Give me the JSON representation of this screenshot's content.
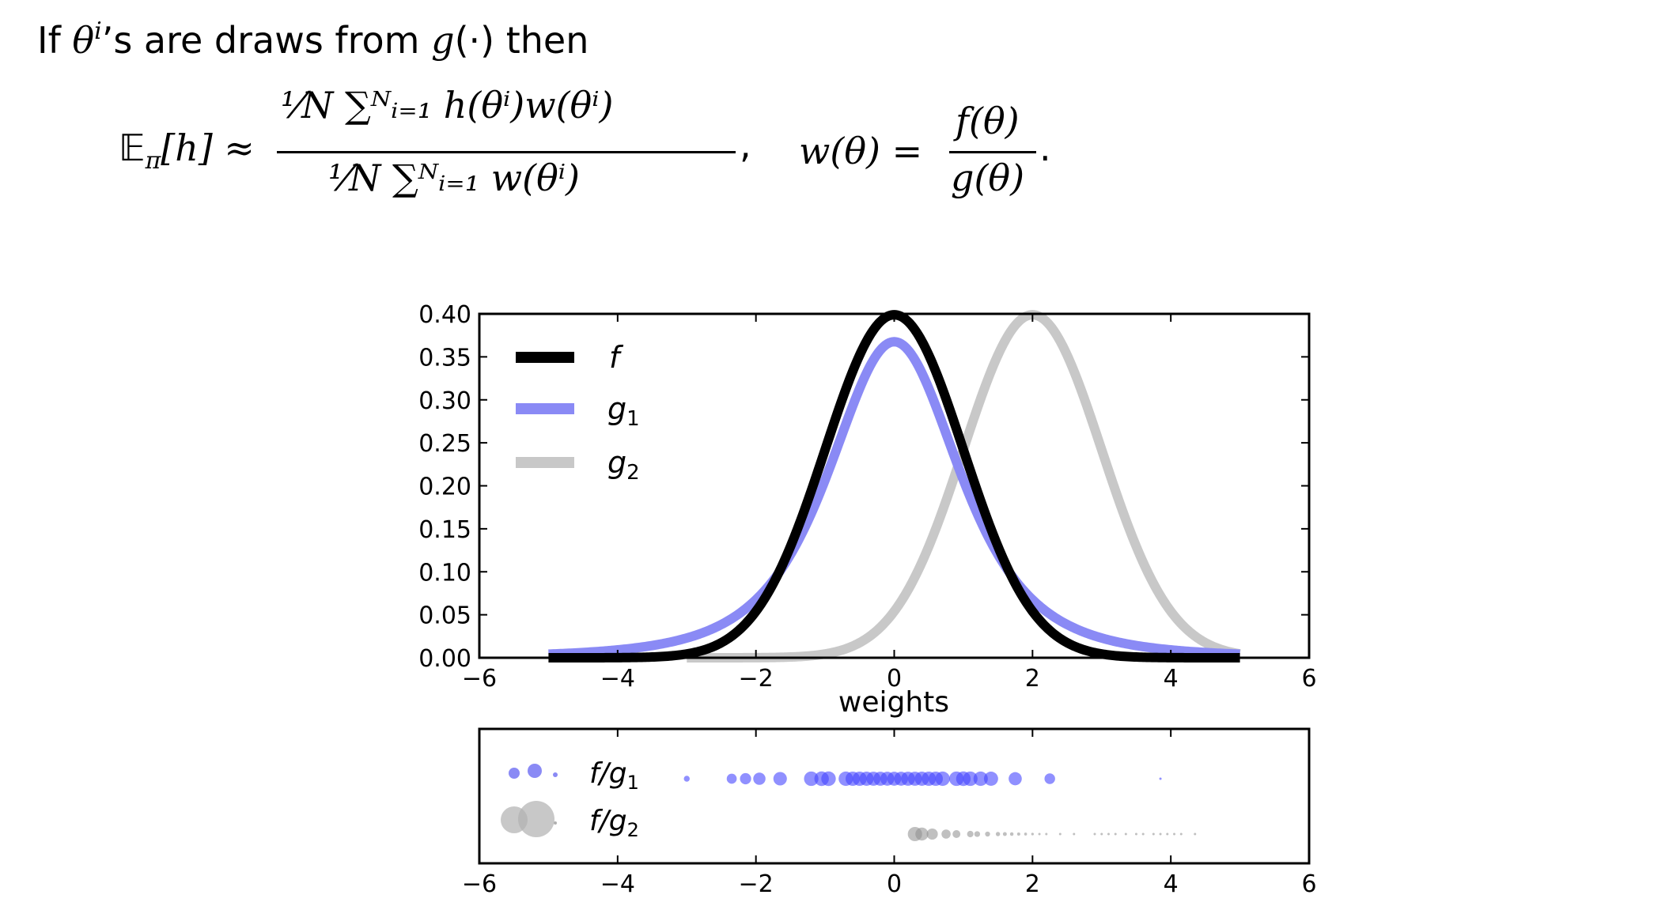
{
  "intro": {
    "prefix": "If ",
    "theta": "θ",
    "sup_i": "i",
    "rest": "’s are draws from ",
    "g": "g",
    "tail": "(·) then"
  },
  "equation": {
    "lhs": "𝔼",
    "lhs_sub": "π",
    "lhs_arg": "[h] ≈",
    "num": "¹⁄N ∑ᴺᵢ₌₁ h(θⁱ)w(θⁱ)",
    "den": "¹⁄N ∑ᴺᵢ₌₁ w(θⁱ)",
    "comma": ",",
    "w_lhs": "w(θ) =",
    "w_num": "f(θ)",
    "w_den": "g(θ)",
    "period": "."
  },
  "chart_data": [
    {
      "type": "line",
      "xlabel": "weights",
      "ylabel": "",
      "xlim": [
        -6,
        6
      ],
      "ylim": [
        0.0,
        0.4
      ],
      "x_ticks": [
        "−6",
        "−4",
        "−2",
        "0",
        "2",
        "4",
        "6"
      ],
      "y_ticks": [
        "0.00",
        "0.05",
        "0.10",
        "0.15",
        "0.20",
        "0.25",
        "0.30",
        "0.35",
        "0.40"
      ],
      "legend_position": "top-left",
      "series": [
        {
          "name": "f",
          "color": "#000000",
          "dist": "normal",
          "mean": 0,
          "sd": 1,
          "domain": [
            -5,
            5
          ],
          "peak": 0.399
        },
        {
          "name": "g1",
          "color": "#8a8af5",
          "dist": "student-t",
          "mean": 0,
          "df": 3,
          "domain": [
            -5,
            5
          ],
          "peak": 0.378
        },
        {
          "name": "g2",
          "color": "#c8c8c8",
          "dist": "normal",
          "mean": 2,
          "sd": 1,
          "domain": [
            -3,
            5
          ],
          "peak": 0.399
        }
      ]
    },
    {
      "type": "scatter",
      "xlim": [
        -6,
        6
      ],
      "x_ticks": [
        "−6",
        "−4",
        "−2",
        "0",
        "2",
        "4",
        "6"
      ],
      "legend_position": "top-left",
      "series": [
        {
          "name": "f/g1",
          "color": "#0000ff",
          "points_x": [
            -3.0,
            -2.35,
            -2.15,
            -1.95,
            -1.65,
            -1.2,
            -1.05,
            -0.95,
            -0.7,
            -0.6,
            -0.5,
            -0.4,
            -0.3,
            -0.2,
            -0.1,
            0.0,
            0.1,
            0.2,
            0.3,
            0.4,
            0.5,
            0.6,
            0.7,
            0.9,
            1.0,
            1.1,
            1.25,
            1.4,
            1.75,
            2.25,
            3.85
          ]
        },
        {
          "name": "f/g2",
          "color": "#888888",
          "points_x": [
            0.3,
            0.4,
            0.55,
            0.75,
            0.9,
            1.1,
            1.2,
            1.35,
            1.5,
            1.6,
            1.7,
            1.8,
            1.9,
            2.0,
            2.1,
            2.2,
            2.4,
            2.6,
            2.9,
            3.0,
            3.1,
            3.2,
            3.35,
            3.5,
            3.6,
            3.75,
            3.85,
            3.95,
            4.05,
            4.15,
            4.35
          ]
        }
      ]
    }
  ],
  "legend_main": {
    "f": "f",
    "g1": "g",
    "g1_sub": "1",
    "g2": "g",
    "g2_sub": "2"
  },
  "legend_scatter": {
    "fg1": "f/g",
    "fg1_sub": "1",
    "fg2": "f/g",
    "fg2_sub": "2"
  }
}
